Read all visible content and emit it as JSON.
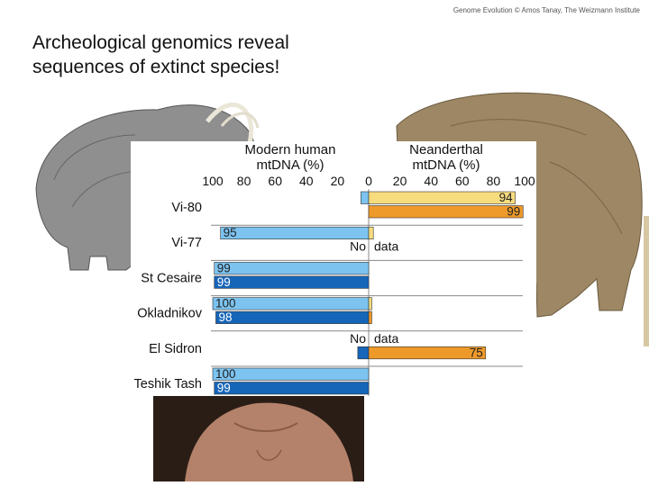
{
  "header": "Genome Evolution © Amos Tanay, The Weizmann Institute",
  "title_lines": [
    "Archeological genomics reveal",
    "sequences of extinct species!"
  ],
  "images": {
    "mammoth": "mammoth-illustration",
    "bear": "cave-bear-illustration",
    "human": "human-torso-photo"
  },
  "chart_data": {
    "type": "bar",
    "left_axis_title": [
      "Modern human",
      "mtDNA (%)"
    ],
    "right_axis_title": [
      "Neanderthal",
      "mtDNA (%)"
    ],
    "left_ticks": [
      "100",
      "80",
      "60",
      "40",
      "20",
      "0"
    ],
    "right_ticks": [
      "20",
      "40",
      "60",
      "80",
      "100"
    ],
    "categories": [
      "Vi-80",
      "Vi-77",
      "St Cesaire",
      "Okladnikov",
      "El Sidron",
      "Teshik Tash"
    ],
    "no_data_label": [
      "No",
      "data"
    ],
    "colors": {
      "modern_light": "#7cc3f0",
      "modern_dark": "#1565b8",
      "neander_light": "#f7dc7e",
      "neander_dark": "#ee9a2a"
    },
    "series": [
      {
        "values": [
          {
            "modern": 5,
            "neander": 94
          },
          {
            "modern": 95,
            "neander": 3
          },
          {
            "modern": 99,
            "neander": 0
          },
          {
            "modern": 100,
            "neander": 2
          },
          null,
          {
            "modern": 100,
            "neander": 0
          }
        ]
      },
      {
        "values": [
          {
            "modern": 0,
            "neander": 99
          },
          null,
          {
            "modern": 99,
            "neander": 0
          },
          {
            "modern": 98,
            "neander": 2
          },
          {
            "modern": 7,
            "neander": 75
          },
          {
            "modern": 99,
            "neander": 0
          }
        ]
      }
    ],
    "value_labels": [
      [
        "",
        "94",
        "99"
      ],
      [
        "95",
        "",
        ""
      ],
      [
        "99",
        "99",
        ""
      ],
      [
        "100",
        "98",
        ""
      ],
      [
        "",
        "",
        "75"
      ],
      [
        "100",
        "99",
        ""
      ]
    ]
  }
}
